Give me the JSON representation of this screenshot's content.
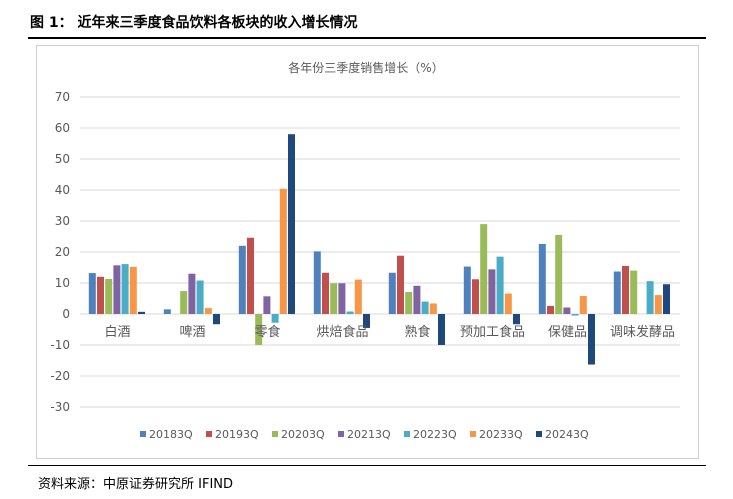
{
  "figure_title": "图 1：  近年来三季度食品饮料各板块的收入增长情况",
  "source": "资料来源：中原证券研究所 IFIND",
  "chart_data": {
    "type": "bar",
    "title": "各年份三季度销售增长（%）",
    "categories": [
      "白酒",
      "啤酒",
      "零食",
      "烘焙食品",
      "熟食",
      "预加工食品",
      "保健品",
      "调味发酵品"
    ],
    "ylim": [
      -30,
      70
    ],
    "yticks": [
      70,
      60,
      50,
      40,
      30,
      20,
      10,
      0,
      -10,
      -20,
      -30
    ],
    "grid": true,
    "legend": "bottom",
    "series": [
      {
        "name": "20183Q",
        "color": "#4f81bd",
        "values": [
          13.2,
          1.5,
          22.0,
          20.2,
          13.3,
          15.3,
          22.6,
          13.7
        ]
      },
      {
        "name": "20193Q",
        "color": "#c0504d",
        "values": [
          12.0,
          0,
          24.6,
          13.3,
          18.8,
          11.2,
          2.6,
          15.5
        ]
      },
      {
        "name": "20203Q",
        "color": "#9bbb59",
        "values": [
          11.3,
          7.4,
          -10.0,
          9.9,
          7.1,
          29.0,
          25.5,
          14.0
        ]
      },
      {
        "name": "20213Q",
        "color": "#8064a2",
        "values": [
          15.7,
          13.0,
          5.7,
          9.9,
          9.1,
          14.4,
          2.1,
          0
        ]
      },
      {
        "name": "20223Q",
        "color": "#4bacc6",
        "values": [
          16.1,
          10.8,
          -2.8,
          0.8,
          4.0,
          18.5,
          -0.5,
          10.6
        ]
      },
      {
        "name": "20233Q",
        "color": "#f79646",
        "values": [
          15.2,
          1.9,
          40.4,
          11.1,
          3.4,
          6.6,
          5.8,
          6.1
        ]
      },
      {
        "name": "20243Q",
        "color": "#1f497d",
        "values": [
          0.7,
          -3.3,
          58.0,
          -4.5,
          -10.0,
          -3.3,
          -16.3,
          9.6
        ]
      }
    ]
  }
}
